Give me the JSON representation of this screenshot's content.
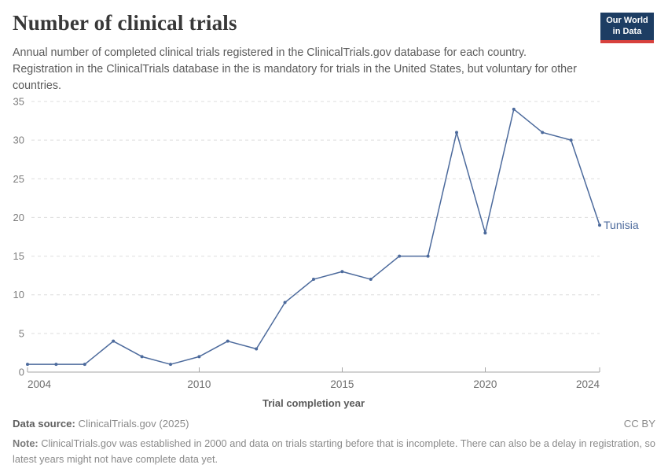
{
  "header": {
    "title": "Number of clinical trials",
    "subtitle": "Annual number of completed clinical trials registered in the ClinicalTrials.gov database for each country. Registration in the ClinicalTrials database in the is mandatory for trials in the United States, but voluntary for other countries."
  },
  "logo": {
    "line1": "Our World",
    "line2": "in Data",
    "bg_color": "#1d3d63",
    "accent_color": "#d7413d"
  },
  "chart_data": {
    "type": "line",
    "title": "Number of clinical trials",
    "xlabel": "Trial completion year",
    "ylabel": "",
    "x": [
      2004,
      2005,
      2006,
      2007,
      2008,
      2009,
      2010,
      2011,
      2012,
      2013,
      2014,
      2015,
      2016,
      2017,
      2018,
      2019,
      2020,
      2021,
      2022,
      2023,
      2024
    ],
    "series": [
      {
        "name": "Tunisia",
        "color": "#4c6a9c",
        "values": [
          1,
          1,
          1,
          4,
          2,
          1,
          2,
          4,
          3,
          9,
          12,
          13,
          12,
          15,
          15,
          31,
          18,
          34,
          31,
          30,
          19
        ]
      }
    ],
    "ylim": [
      0,
      35
    ],
    "yticks": [
      0,
      5,
      10,
      15,
      20,
      25,
      30,
      35
    ],
    "xticks": [
      2004,
      2010,
      2015,
      2020,
      2024
    ],
    "grid": "horizontal-dashed",
    "legend": "line-end-label"
  },
  "footer": {
    "data_source_label": "Data source:",
    "data_source_value": " ClinicalTrials.gov (2025)",
    "license": "CC BY",
    "note_label": "Note:",
    "note_text": " ClinicalTrials.gov was established in 2000 and data on trials starting before that is incomplete. There can also be a delay in registration, so latest years might not have complete data yet."
  }
}
